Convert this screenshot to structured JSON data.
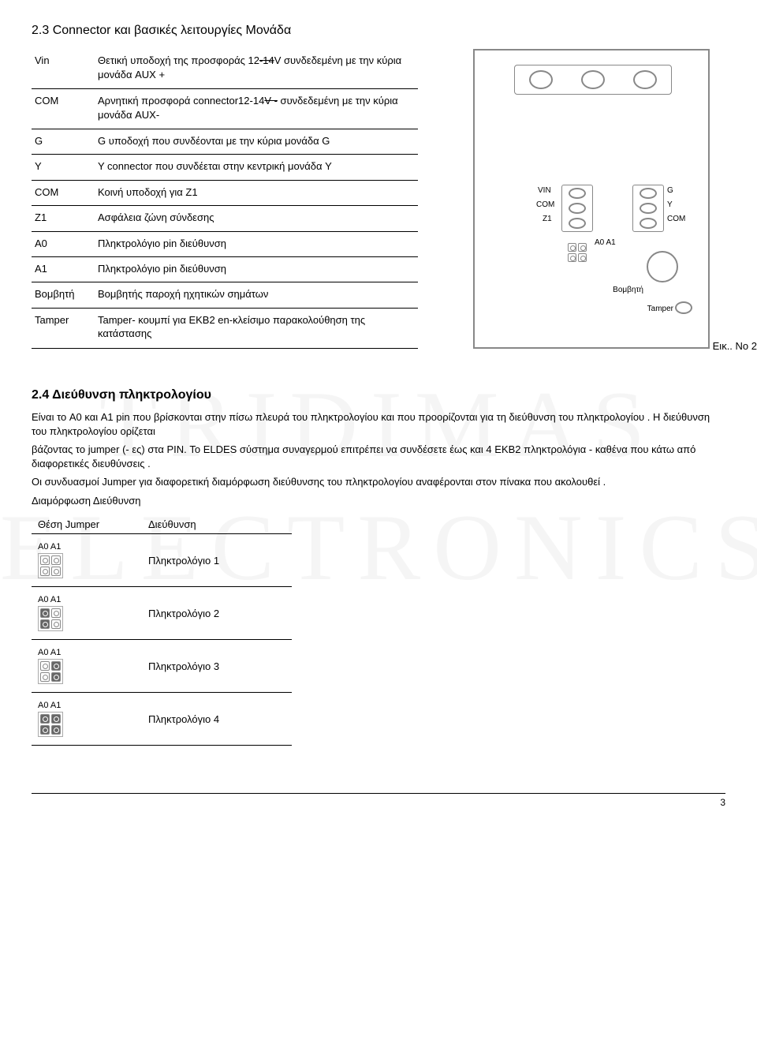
{
  "section_2_3": {
    "title": "2.3 Connector  και βασικές λειτουργίες Μονάδα",
    "rows": [
      {
        "label": "Vin",
        "desc_pre": "Θετική υποδοχή της προσφοράς 12",
        "desc_strike": "-14",
        "desc_post": "V συνδεδεμένη με την κύρια μονάδα AUX +"
      },
      {
        "label": "COM",
        "desc_pre": "Αρνητική προσφορά connector12-14",
        "desc_strike": "V -",
        "desc_post": " συνδεδεμένη με την κύρια μονάδα AUX-"
      },
      {
        "label": "G",
        "desc_pre": "G υποδοχή που συνδέονται με την κύρια μονάδα G",
        "desc_strike": "",
        "desc_post": ""
      },
      {
        "label": "Y",
        "desc_pre": "Y connector που συνδέεται στην κεντρική μονάδα Y",
        "desc_strike": "",
        "desc_post": ""
      },
      {
        "label": "COM",
        "desc_pre": "Κοινή υποδοχή για Z1",
        "desc_strike": "",
        "desc_post": ""
      },
      {
        "label": "Z1",
        "desc_pre": "Ασφάλεια ζώνη σύνδεσης",
        "desc_strike": "",
        "desc_post": ""
      },
      {
        "label": "A0",
        "desc_pre": "Πληκτρολόγιο pin διεύθυνση",
        "desc_strike": "",
        "desc_post": ""
      },
      {
        "label": "A1",
        "desc_pre": "Πληκτρολόγιο pin διεύθυνση",
        "desc_strike": "",
        "desc_post": ""
      },
      {
        "label": "Βομβητή",
        "desc_pre": "Βομβητής παροχή ηχητικών σημάτων",
        "desc_strike": "",
        "desc_post": ""
      },
      {
        "label": "Tamper",
        "desc_pre": "Tamper- κουμπί για EKB2 en-κλείσιμο παρακολούθηση της κατάστασης",
        "desc_strike": "",
        "desc_post": ""
      }
    ]
  },
  "diagram": {
    "labels": {
      "vin": "VIN",
      "com": "COM",
      "z1": "Z1",
      "a0a1": "A0 A1",
      "g": "G",
      "y": "Y",
      "com2": "COM",
      "buzzer": "Βομβητή",
      "tamper": "Tamper"
    },
    "caption": "Εικ.. No 2"
  },
  "section_2_4": {
    "title": "2.4 Διεύθυνση πληκτρολογίου",
    "para1": "Είναι το A0 και A1 pin που βρίσκονται στην πίσω πλευρά του πληκτρολογίου και που προορίζονται για τη διεύθυνση του πληκτρολογίου . Η διεύθυνση του πληκτρολογίου ορίζεται",
    "para2": "βάζοντας το jumper (- ες) στα PIN.  Το ELDES    σύστημα συναγερμού επιτρέπει να συνδέσετε έως και 4 EKB2   πληκτρολόγια - καθένα που κάτω από διαφορετικές διευθύνσεις .",
    "para3": "Οι συνδυασμοί Jumper για διαφορετική διαμόρφωση διεύθυνσης του πληκτρολογίου αναφέρονται στον πίνακα που ακολουθεί .",
    "para4": "Διαμόρφωση Διεύθυνση",
    "table": {
      "head_pos": "Θέση Jumper",
      "head_addr": "Διεύθυνση",
      "rows": [
        {
          "jlabel": "A0 A1",
          "name": "Πληκτρολόγιο 1",
          "pins": [
            [
              0,
              0
            ],
            [
              0,
              0
            ]
          ]
        },
        {
          "jlabel": "A0 A1",
          "name": "Πληκτρολόγιο 2",
          "pins": [
            [
              1,
              0
            ],
            [
              1,
              0
            ]
          ]
        },
        {
          "jlabel": "A0 A1",
          "name": "Πληκτρολόγιο 3",
          "pins": [
            [
              0,
              1
            ],
            [
              0,
              1
            ]
          ]
        },
        {
          "jlabel": "A0 A1",
          "name": "Πληκτρολόγιο 4",
          "pins": [
            [
              1,
              1
            ],
            [
              1,
              1
            ]
          ]
        }
      ]
    }
  },
  "pageNumber": "3",
  "watermark": {
    "line1": "TRIDIMAS",
    "line2": "ELECTRONICS"
  }
}
